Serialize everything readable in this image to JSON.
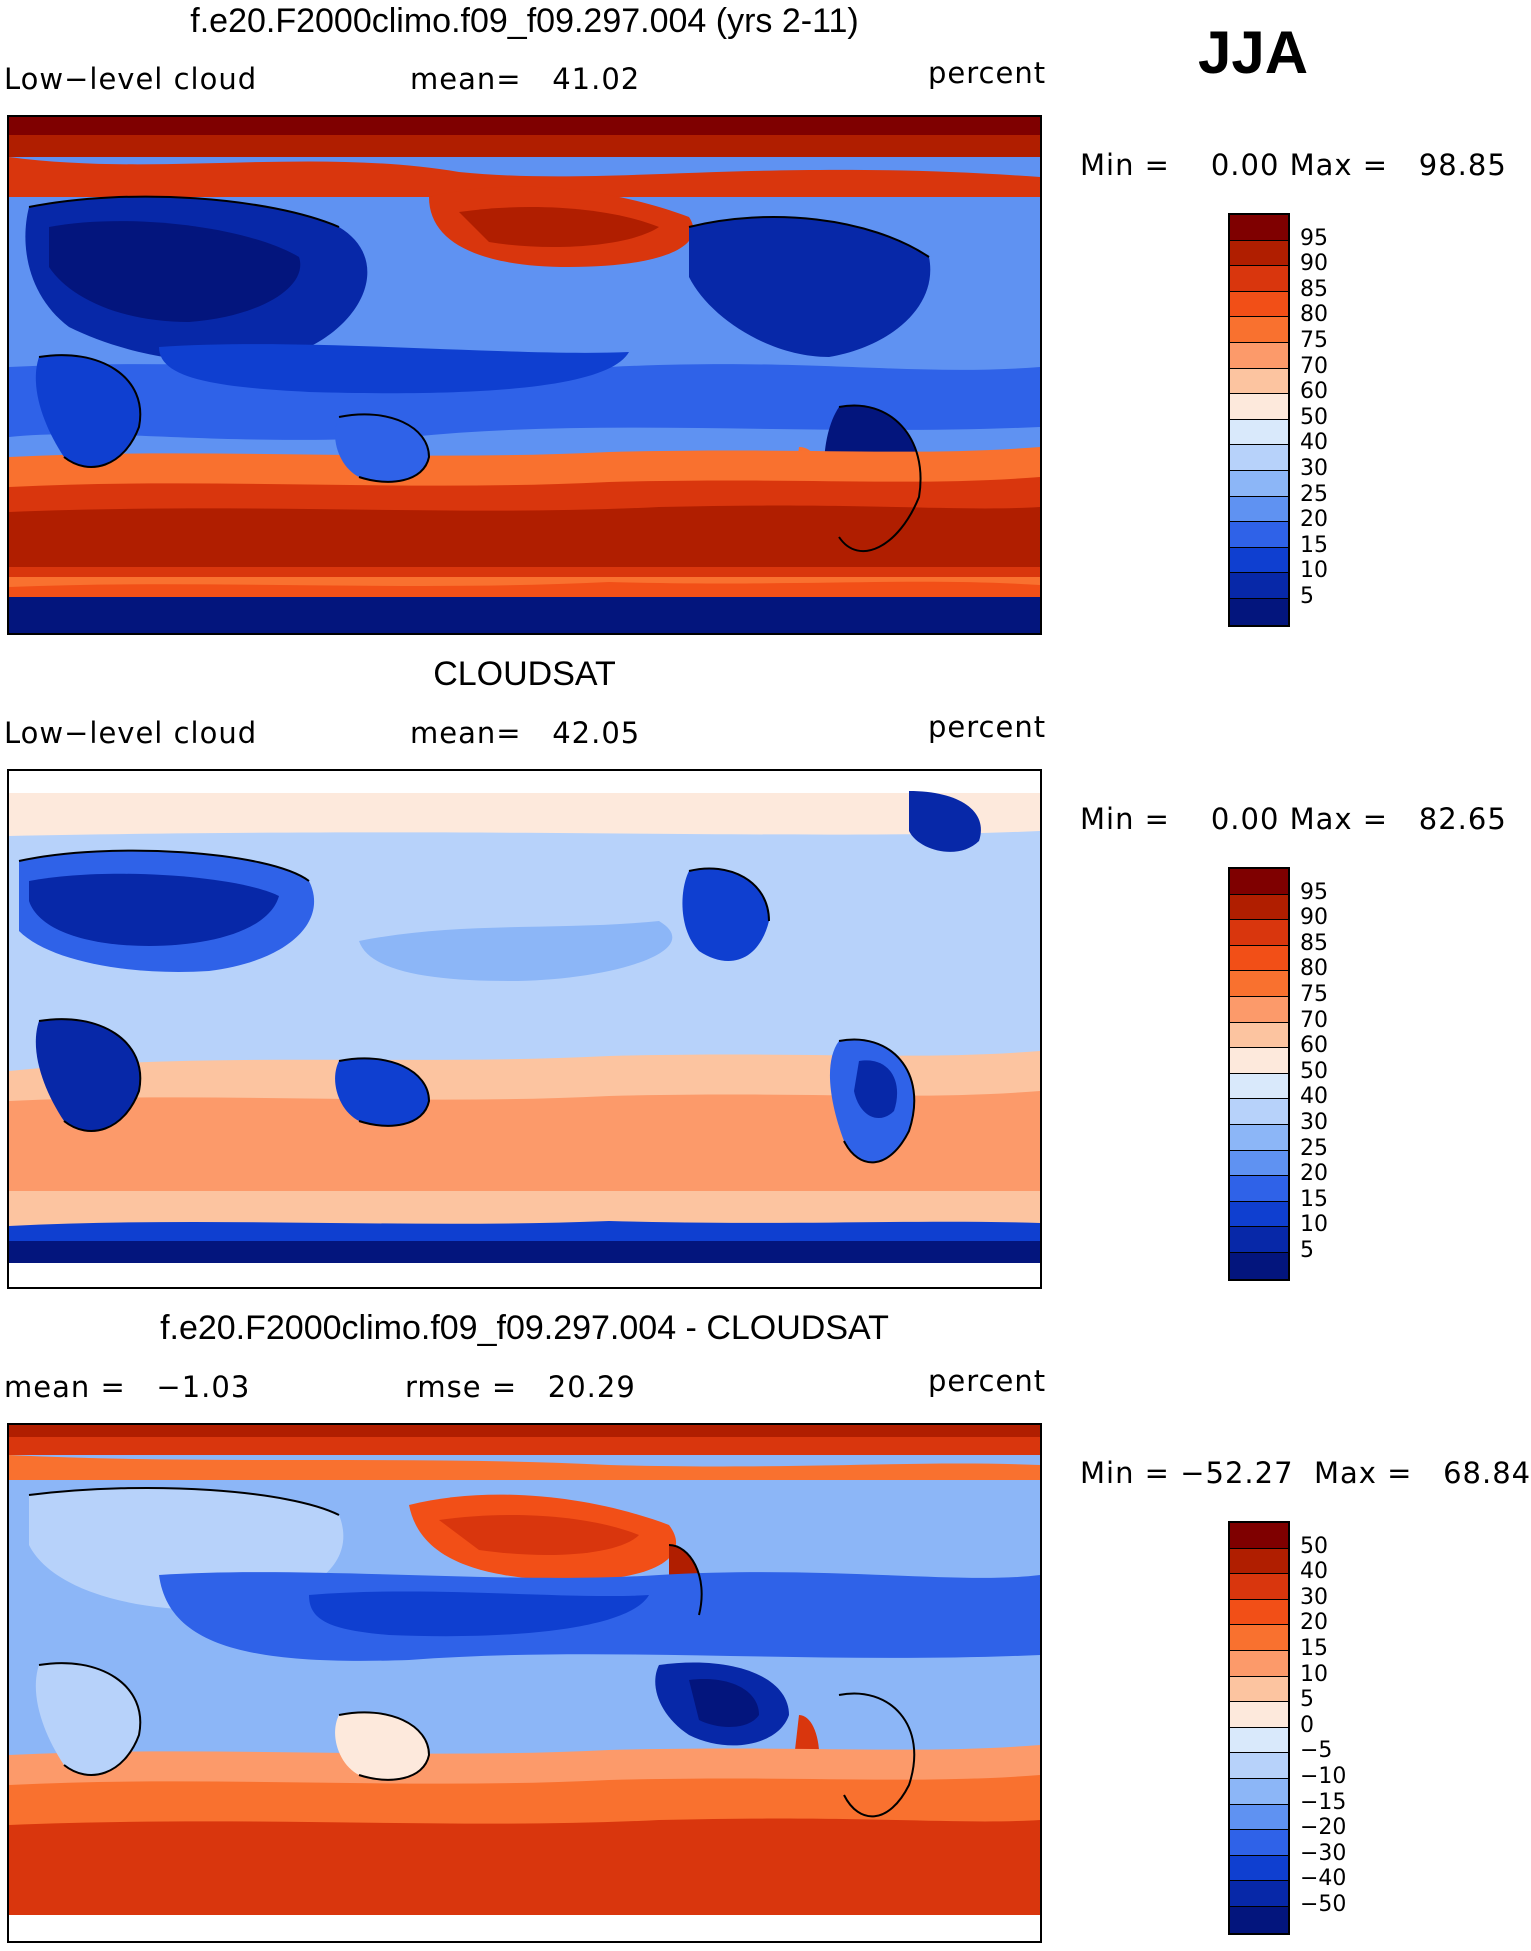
{
  "season": "JJA",
  "palette_seq": [
    "#7f0000",
    "#b01e00",
    "#d9360d",
    "#f24f17",
    "#f9712f",
    "#fc9a6a",
    "#fcc4a0",
    "#fde9dc",
    "#d9e9fb",
    "#b7d2fa",
    "#8cb6f7",
    "#5f92f2",
    "#2f62e8",
    "#0f3fd0",
    "#0728a8",
    "#03157d"
  ],
  "palette_div": [
    "#7f0000",
    "#b01e00",
    "#d9360d",
    "#f24f17",
    "#f9712f",
    "#fc9a6a",
    "#fcc4a0",
    "#fde9dc",
    "#d9e9fb",
    "#b7d2fa",
    "#8cb6f7",
    "#5f92f2",
    "#2f62e8",
    "#0f3fd0",
    "#0728a8",
    "#03157d"
  ],
  "panels": [
    {
      "title": "f.e20.F2000climo.f09_f09.297.004 (yrs 2-11)",
      "left_label": "Low−level cloud",
      "mean_label": "mean=   41.02",
      "units": "percent",
      "minmax": "Min =    0.00 Max =   98.85",
      "colorbar_labels": [
        "95",
        "90",
        "85",
        "80",
        "75",
        "70",
        "60",
        "50",
        "40",
        "30",
        "25",
        "20",
        "15",
        "10",
        "5"
      ]
    },
    {
      "title": "CLOUDSAT",
      "left_label": "Low−level cloud",
      "mean_label": "mean=   42.05",
      "units": "percent",
      "minmax": "Min =    0.00 Max =   82.65",
      "colorbar_labels": [
        "95",
        "90",
        "85",
        "80",
        "75",
        "70",
        "60",
        "50",
        "40",
        "30",
        "25",
        "20",
        "15",
        "10",
        "5"
      ]
    },
    {
      "title": "f.e20.F2000climo.f09_f09.297.004 - CLOUDSAT",
      "left_label": "mean =   −1.03",
      "mean_label": "rmse =   20.29",
      "units": "percent",
      "minmax": "Min = −52.27  Max =   68.84",
      "colorbar_labels": [
        "50",
        "40",
        "30",
        "20",
        "15",
        "10",
        "5",
        "0",
        "−5",
        "−10",
        "−15",
        "−20",
        "−30",
        "−40",
        "−50"
      ]
    }
  ]
}
